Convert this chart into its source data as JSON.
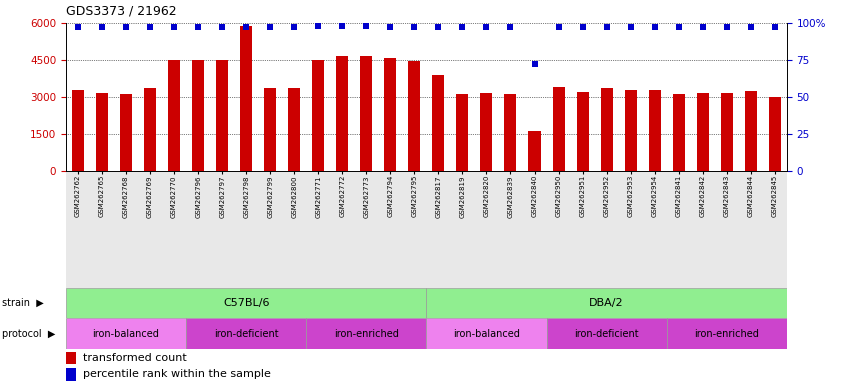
{
  "title": "GDS3373 / 21962",
  "samples": [
    "GSM262762",
    "GSM262765",
    "GSM262768",
    "GSM262769",
    "GSM262770",
    "GSM262796",
    "GSM262797",
    "GSM262798",
    "GSM262799",
    "GSM262800",
    "GSM262771",
    "GSM262772",
    "GSM262773",
    "GSM262794",
    "GSM262795",
    "GSM262817",
    "GSM262819",
    "GSM262820",
    "GSM262839",
    "GSM262840",
    "GSM262950",
    "GSM262951",
    "GSM262952",
    "GSM262953",
    "GSM262954",
    "GSM262841",
    "GSM262842",
    "GSM262843",
    "GSM262844",
    "GSM262845"
  ],
  "bar_values": [
    3300,
    3150,
    3100,
    3350,
    4500,
    4500,
    4500,
    5900,
    3350,
    3350,
    4500,
    4650,
    4650,
    4600,
    4450,
    3900,
    3100,
    3150,
    3100,
    1600,
    3400,
    3200,
    3350,
    3300,
    3300,
    3100,
    3150,
    3150,
    3250,
    3000
  ],
  "percentile_values": [
    97,
    97,
    97,
    97,
    97,
    97,
    97,
    97,
    97,
    97,
    98,
    98,
    98,
    97,
    97,
    97,
    97,
    97,
    97,
    72,
    97,
    97,
    97,
    97,
    97,
    97,
    97,
    97,
    97,
    97
  ],
  "bar_color": "#CC0000",
  "dot_color": "#0000CC",
  "ylim_left": [
    0,
    6000
  ],
  "ylim_right": [
    0,
    100
  ],
  "yticks_left": [
    0,
    1500,
    3000,
    4500,
    6000
  ],
  "ytick_labels_left": [
    "0",
    "1500",
    "3000",
    "4500",
    "6000"
  ],
  "yticks_right": [
    0,
    25,
    50,
    75,
    100
  ],
  "ytick_labels_right": [
    "0",
    "25",
    "50",
    "75",
    "100%"
  ],
  "strain_groups": [
    {
      "label": "C57BL/6",
      "start": 0,
      "end": 15,
      "color": "#90EE90"
    },
    {
      "label": "DBA/2",
      "start": 15,
      "end": 30,
      "color": "#90EE90"
    }
  ],
  "protocol_groups": [
    {
      "label": "iron-balanced",
      "start": 0,
      "end": 5,
      "color": "#EE82EE"
    },
    {
      "label": "iron-deficient",
      "start": 5,
      "end": 10,
      "color": "#CC44CC"
    },
    {
      "label": "iron-enriched",
      "start": 10,
      "end": 15,
      "color": "#CC44CC"
    },
    {
      "label": "iron-balanced",
      "start": 15,
      "end": 20,
      "color": "#EE82EE"
    },
    {
      "label": "iron-deficient",
      "start": 20,
      "end": 25,
      "color": "#CC44CC"
    },
    {
      "label": "iron-enriched",
      "start": 25,
      "end": 30,
      "color": "#CC44CC"
    }
  ],
  "bg_color": "#FFFFFF",
  "xlabel_bg": "#DDDDDD",
  "tick_label_color_left": "#CC0000",
  "tick_label_color_right": "#0000CC",
  "bar_width": 0.5,
  "dot_marker_size": 5
}
